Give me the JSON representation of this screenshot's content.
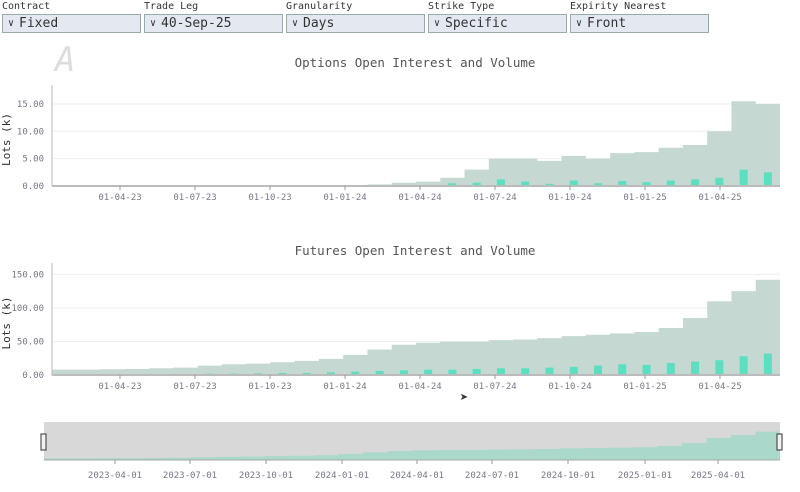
{
  "controls": [
    {
      "label": "Contract",
      "value": "Fixed"
    },
    {
      "label": "Trade Leg",
      "value": "40-Sep-25"
    },
    {
      "label": "Granularity",
      "value": "Days"
    },
    {
      "label": "Strike Type",
      "value": "Specific"
    },
    {
      "label": "Expirity Nearest",
      "value": "Front"
    }
  ],
  "colors": {
    "oi": "#c5d9d2",
    "volume": "#3ee0bb",
    "navigator_bg": "#d8d8d8"
  },
  "chart_data": [
    {
      "type": "area",
      "title": "Options Open Interest and Volume",
      "ylabel": "Lots (k)",
      "ylim": [
        0,
        17
      ],
      "yticks": [
        "0.00",
        "5.00",
        "10.00",
        "15.00"
      ],
      "ytick_values": [
        0,
        5,
        10,
        15
      ],
      "xticks": [
        "01-04-23",
        "01-07-23",
        "01-10-23",
        "01-01-24",
        "01-04-24",
        "01-07-24",
        "01-10-24",
        "01-01-25",
        "01-04-25"
      ],
      "x": [
        "2023-01",
        "2023-02",
        "2023-03",
        "2023-04",
        "2023-05",
        "2023-06",
        "2023-07",
        "2023-08",
        "2023-09",
        "2023-10",
        "2023-11",
        "2023-12",
        "2024-01",
        "2024-02",
        "2024-03",
        "2024-04",
        "2024-05",
        "2024-06",
        "2024-07",
        "2024-08",
        "2024-09",
        "2024-10",
        "2024-11",
        "2024-12",
        "2025-01",
        "2025-02",
        "2025-03",
        "2025-04",
        "2025-05",
        "2025-06"
      ],
      "series": [
        {
          "name": "Open Interest",
          "values": [
            0,
            0,
            0,
            0,
            0,
            0,
            0,
            0,
            0,
            0,
            0,
            0,
            0.05,
            0.3,
            0.6,
            0.8,
            1.5,
            3,
            5,
            5,
            4.6,
            5.5,
            5,
            6,
            6.2,
            7,
            7.5,
            10,
            15.5,
            15
          ]
        },
        {
          "name": "Volume",
          "values": [
            0,
            0,
            0,
            0,
            0,
            0,
            0,
            0,
            0,
            0,
            0,
            0,
            0,
            0.05,
            0.1,
            0.2,
            0.5,
            0.6,
            1.2,
            0.8,
            0.4,
            1,
            0.5,
            0.9,
            0.7,
            1,
            1.2,
            1.5,
            3,
            2.5
          ]
        }
      ]
    },
    {
      "type": "area",
      "title": "Futures Open Interest and Volume",
      "ylabel": "Lots (k)",
      "ylim": [
        0,
        155
      ],
      "yticks": [
        "0.00",
        "50.00",
        "100.00",
        "150.00"
      ],
      "ytick_values": [
        0,
        50,
        100,
        150
      ],
      "xticks": [
        "01-04-23",
        "01-07-23",
        "01-10-23",
        "01-01-24",
        "01-04-24",
        "01-07-24",
        "01-10-24",
        "01-01-25",
        "01-04-25"
      ],
      "x": [
        "2023-01",
        "2023-02",
        "2023-03",
        "2023-04",
        "2023-05",
        "2023-06",
        "2023-07",
        "2023-08",
        "2023-09",
        "2023-10",
        "2023-11",
        "2023-12",
        "2024-01",
        "2024-02",
        "2024-03",
        "2024-04",
        "2024-05",
        "2024-06",
        "2024-07",
        "2024-08",
        "2024-09",
        "2024-10",
        "2024-11",
        "2024-12",
        "2025-01",
        "2025-02",
        "2025-03",
        "2025-04",
        "2025-05",
        "2025-06"
      ],
      "series": [
        {
          "name": "Open Interest",
          "values": [
            8,
            8,
            8.5,
            9,
            10,
            11,
            14,
            16,
            17,
            19,
            21,
            24,
            30,
            38,
            45,
            48,
            50,
            50,
            52,
            53,
            55,
            58,
            60,
            62,
            64,
            70,
            85,
            110,
            125,
            142
          ]
        },
        {
          "name": "Volume",
          "values": [
            1,
            1,
            1,
            1,
            1,
            1.5,
            2,
            2,
            2.5,
            3,
            3,
            4,
            5,
            6,
            7,
            8,
            8,
            9,
            10,
            10,
            11,
            12,
            14,
            16,
            15,
            18,
            20,
            22,
            28,
            32
          ]
        }
      ]
    },
    {
      "type": "area",
      "title": "",
      "xticks": [
        "2023-04-01",
        "2023-07-01",
        "2023-10-01",
        "2024-01-01",
        "2024-04-01",
        "2024-07-01",
        "2024-10-01",
        "2025-01-01",
        "2025-04-01"
      ]
    }
  ]
}
